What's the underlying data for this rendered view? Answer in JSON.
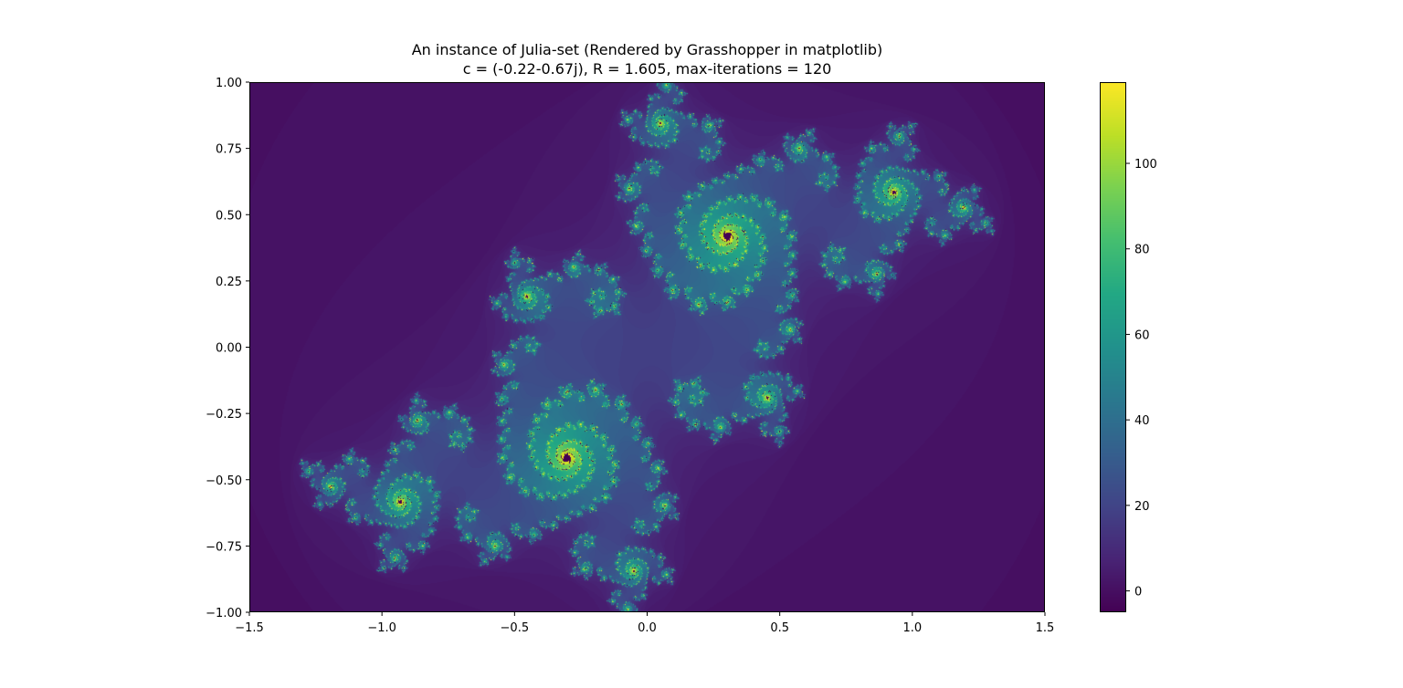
{
  "chart_data": {
    "type": "heatmap",
    "title_lines": [
      "An instance of Julia-set (Rendered by Grasshopper in matplotlib)",
      "c = (-0.22-0.67j), R = 1.605, max-iterations = 120"
    ],
    "xlabel": "",
    "ylabel": "",
    "julia": {
      "c_re": -0.22,
      "c_im": -0.67,
      "R": 1.605,
      "max_iterations": 120
    },
    "xlim": [
      -1.5,
      1.5
    ],
    "ylim": [
      -1.0,
      1.0
    ],
    "xticks": [
      -1.5,
      -1.0,
      -0.5,
      0.0,
      0.5,
      1.0,
      1.5
    ],
    "xtick_labels": [
      "−1.5",
      "−1.0",
      "−0.5",
      "0.0",
      "0.5",
      "1.0",
      "1.5"
    ],
    "yticks": [
      -1.0,
      -0.75,
      -0.5,
      -0.25,
      0.0,
      0.25,
      0.5,
      0.75,
      1.0
    ],
    "ytick_labels": [
      "−1.00",
      "−0.75",
      "−0.50",
      "−0.25",
      "0.00",
      "0.25",
      "0.50",
      "0.75",
      "1.00"
    ],
    "colorbar": {
      "colormap": "viridis",
      "range": [
        -5,
        119
      ],
      "ticks": [
        0,
        20,
        40,
        60,
        80,
        100
      ],
      "tick_labels": [
        "0",
        "20",
        "40",
        "60",
        "80",
        "100"
      ]
    },
    "grid": false
  }
}
